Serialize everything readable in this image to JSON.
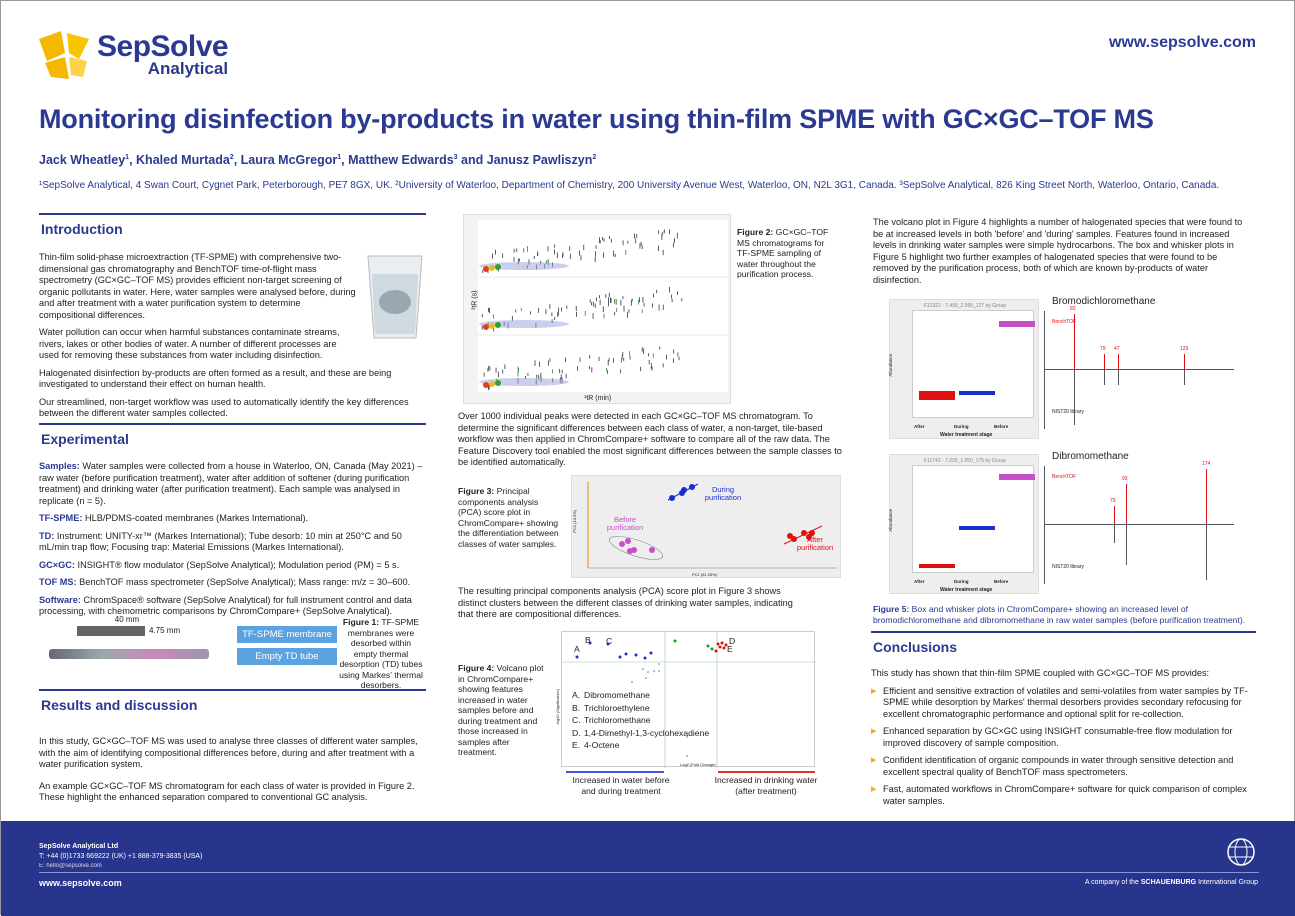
{
  "header": {
    "logo_name": "SepSolve",
    "logo_sub": "Analytical",
    "url": "www.sepsolve.com"
  },
  "title": "Monitoring disinfection by-products in water using thin-film SPME with GC×GC–TOF MS",
  "authors": [
    {
      "name": "Jack Wheatley",
      "sup": "1"
    },
    {
      "name": "Khaled Murtada",
      "sup": "2"
    },
    {
      "name": "Laura McGregor",
      "sup": "1"
    },
    {
      "name": "Matthew Edwards",
      "sup": "3"
    },
    {
      "name": "Janusz Pawliszyn",
      "sup": "2"
    }
  ],
  "affiliations": "¹SepSolve Analytical, 4 Swan Court, Cygnet Park, Peterborough, PE7 8GX, UK. ²University of Waterloo, Department of Chemistry, 200 University Avenue West, Waterloo, ON, N2L 3G1, Canada. ³SepSolve Analytical, 826 King Street North, Waterloo, Ontario, Canada.",
  "introduction": {
    "heading": "Introduction",
    "paragraphs": [
      "Thin-film solid-phase microextraction (TF-SPME) with comprehensive two-dimensional gas chromatography and BenchTOF time-of-flight mass spectrometry (GC×GC–TOF MS) provides efficient non-target screening of organic pollutants in water. Here, water samples were analysed before, during and after treatment with a water purification system to determine compositional differences.",
      "Water pollution can occur when harmful substances contaminate streams, rivers, lakes or other bodies of water. A number of different processes are used for removing these substances from water including disinfection.",
      "Halogenated disinfection by-products are often formed as a result, and these are being investigated to understand their effect on human health.",
      "Our streamlined, non-target workflow was used to automatically identify the key differences between the different water samples collected."
    ]
  },
  "experimental": {
    "heading": "Experimental",
    "items": [
      {
        "label": "Samples:",
        "text": " Water samples were collected from a house in Waterloo, ON, Canada (May 2021) – raw water (before purification treatment), water after addition of softener (during purification treatment) and drinking water (after purification treatment). Each sample was analysed in replicate (n = 5)."
      },
      {
        "label": "TF-SPME:",
        "text": " HLB/PDMS-coated membranes (Markes International)."
      },
      {
        "label": "TD:",
        "text": " Instrument: UNITY-xr™ (Markes International); Tube desorb: 10 min at 250°C and 50 mL/min trap flow; Focusing trap: Material Emissions (Markes International)."
      },
      {
        "label": "GC×GC:",
        "text": " INSIGHT® flow modulator (SepSolve Analytical); Modulation period (PM) = 5 s."
      },
      {
        "label": "TOF MS:",
        "text": " BenchTOF mass spectrometer (SepSolve Analytical); Mass range: m/z = 30–600."
      },
      {
        "label": "Software:",
        "text": " ChromSpace® software (SepSolve Analytical) for full instrument control and data processing, with chemometric comparisons by ChromCompare+ (SepSolve Analytical)."
      }
    ],
    "fig1": {
      "dim_length": "40 mm",
      "dim_width": "4.75 mm",
      "label_membrane": "TF-SPME membrane",
      "label_tube": "Empty TD tube",
      "caption_bold": "Figure 1:",
      "caption": " TF-SPME membranes were desorbed within empty thermal desorption (TD) tubes using Markes' thermal desorbers."
    }
  },
  "results": {
    "heading": "Results and discussion",
    "paragraphs": [
      "In this study, GC×GC–TOF MS was used to analyse three classes of different water samples, with the aim of identifying compositional differences before, during and after treatment with a water purification system.",
      "An example GC×GC–TOF MS chromatogram for each class of water is provided in Figure 2. These highlight the enhanced separation compared to conventional GC analysis."
    ]
  },
  "fig2": {
    "y_axis": "²tR (s)",
    "x_axis": "¹tR (min)",
    "caption_bold": "Figure 2:",
    "caption": " GC×GC–TOF MS chromatograms for TF-SPME sampling of water throughout the purification process."
  },
  "middle_text1": "Over 1000 individual peaks were detected in each GC×GC–TOF MS chromatogram. To determine the significant differences between each class of water, a non-target, tile-based workflow was then applied in ChromCompare+ software to compare all of the raw data. The Feature Discovery tool enabled the most significant differences between the sample classes to be identified automatically.",
  "fig3": {
    "caption_bold": "Figure 3:",
    "caption": " Principal components analysis (PCA) score plot in ChromCompare+ showing the differentiation between classes of water samples.",
    "label_during": "During purification",
    "label_before": "Before purification",
    "label_after": "After purification",
    "x_axis": "PC1 (61.26%)",
    "y_axis": "PC2 (13.5%)"
  },
  "middle_text2": "The resulting principal components analysis (PCA) score plot in Figure 3 shows distinct clusters between the different classes of drinking water samples, indicating that there are compositional differences.",
  "fig4": {
    "caption_bold": "Figure 4:",
    "caption": "  Volcano plot in ChromCompare+ showing features increased in water samples before and during treatment and those increased in samples after treatment.",
    "legend": [
      {
        "key": "A.",
        "name": "Dibromomethane"
      },
      {
        "key": "B.",
        "name": "Trichloroethylene"
      },
      {
        "key": "C.",
        "name": "Trichloromethane"
      },
      {
        "key": "D.",
        "name": "1,4-Dimethyl-1,3-cyclohexadiene"
      },
      {
        "key": "E.",
        "name": "4-Octene"
      }
    ],
    "point_labels": [
      "A",
      "B",
      "C",
      "D",
      "E"
    ],
    "arrow_left": "Increased in water before and during treatment",
    "arrow_right": "Increased in drinking water (after treatment)",
    "x_axis": "Log2 (Fold Change)",
    "y_axis": "-log10 (Significance)"
  },
  "right_text": "The volcano plot in Figure 4 highlights a number of halogenated species that were found to be at increased levels in both 'before' and 'during' samples. Features found in increased levels in drinking water samples were simple hydrocarbons. The box and whisker plots in Figure 5 highlight two further examples of halogenated species that were found to be removed by the purification process, both of which are known by-products of water disinfection.",
  "fig5": {
    "plots": [
      {
        "box_title": "F12322 - 7.458_2.995_127 by Group",
        "compound": "Bromodichloromethane",
        "groups": [
          "After",
          "During",
          "Before"
        ],
        "x_axis": "Water treatment stage",
        "y_axis": "Abundance",
        "spec_top": "BenchTOF",
        "spec_bottom": "NIST20 library",
        "peaks": [
          "83",
          "47",
          "79",
          "129"
        ]
      },
      {
        "box_title": "F11742 - 7.299_1.050_175 by Group",
        "compound": "Dibromomethane",
        "groups": [
          "After",
          "During",
          "Before"
        ],
        "x_axis": "Water treatment stage",
        "y_axis": "Abundance",
        "spec_top": "BenchTOF",
        "spec_bottom": "NIST20 library",
        "peaks": [
          "93",
          "79",
          "174"
        ]
      }
    ],
    "caption_bold": "Figure 5:",
    "caption": " Box and whisker plots in ChromCompare+ showing an increased level of bromodichloromethane and dibromomethane in raw water samples (before purification treatment)."
  },
  "conclusions": {
    "heading": "Conclusions",
    "intro": "This study has shown that thin-film SPME coupled with GC×GC–TOF MS provides:",
    "bullets": [
      "Efficient and sensitive extraction of volatiles and semi-volatiles from water samples by TF-SPME while desorption by Markes' thermal desorbers provides secondary refocusing for excellent chromatographic performance and optional split for re-collection.",
      "Enhanced separation by GC×GC using INSIGHT consumable-free flow modulation for improved discovery of sample composition.",
      "Confident identification of organic compounds in water through sensitive detection and excellent spectral quality of BenchTOF mass spectrometers.",
      "Fast, automated workflows in ChromCompare+ software for quick comparison of complex water samples."
    ]
  },
  "footer": {
    "company": "SepSolve Analytical Ltd",
    "phone": "T: +44 (0)1733 669222 (UK)  +1 888-379-3835 (USA)",
    "email": "E: hello@sepsolve.com",
    "url": "www.sepsolve.com",
    "group_prefix": "A company of the ",
    "group_name": "SCHAUENBURG",
    "group_suffix": " International Group"
  },
  "colors": {
    "navy": "#2b3990",
    "footer": "#28358c",
    "accent": "#f5a623",
    "before": "#c94fc9",
    "during": "#1a2fd0",
    "after": "#e01010"
  }
}
